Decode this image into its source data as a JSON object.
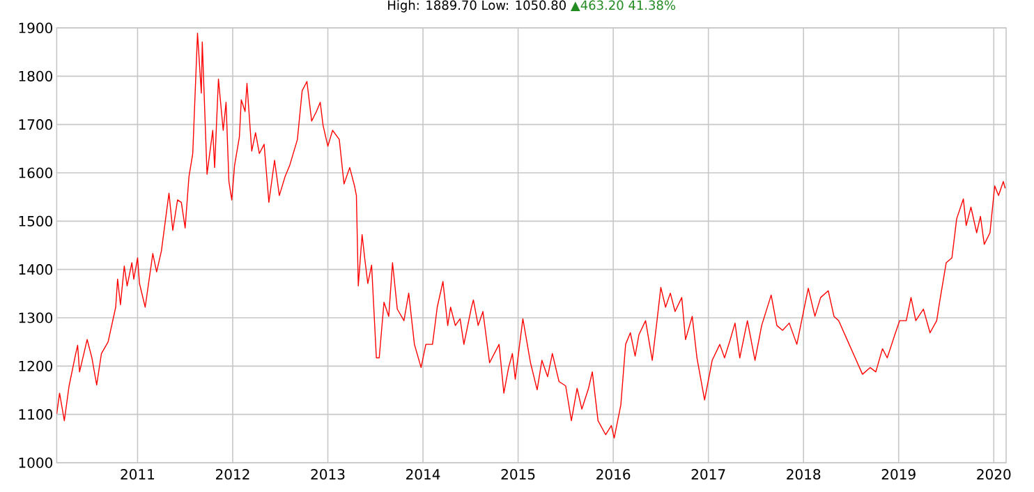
{
  "chart_data": {
    "type": "line",
    "title": "High: 1889.70 Low: 1050.80",
    "annotations": [
      "▲463.20 41.38%"
    ],
    "x": [
      2010.15,
      2010.18,
      2010.23,
      2010.28,
      2010.35,
      2010.37,
      2010.39,
      2010.47,
      2010.52,
      2010.57,
      2010.62,
      2010.69,
      2010.77,
      2010.79,
      2010.82,
      2010.86,
      2010.89,
      2010.94,
      2010.96,
      2011.0,
      2011.02,
      2011.08,
      2011.16,
      2011.2,
      2011.25,
      2011.33,
      2011.37,
      2011.42,
      2011.46,
      2011.5,
      2011.54,
      2011.58,
      2011.63,
      2011.67,
      2011.68,
      2011.73,
      2011.79,
      2011.81,
      2011.85,
      2011.9,
      2011.93,
      2011.96,
      2011.99,
      2012.02,
      2012.07,
      2012.09,
      2012.13,
      2012.15,
      2012.2,
      2012.24,
      2012.28,
      2012.33,
      2012.38,
      2012.44,
      2012.49,
      2012.55,
      2012.6,
      2012.68,
      2012.73,
      2012.78,
      2012.83,
      2012.88,
      2012.92,
      2012.95,
      2013.0,
      2013.05,
      2013.12,
      2013.17,
      2013.23,
      2013.28,
      2013.3,
      2013.32,
      2013.36,
      2013.39,
      2013.42,
      2013.46,
      2013.51,
      2013.54,
      2013.59,
      2013.64,
      2013.68,
      2013.73,
      2013.8,
      2013.85,
      2013.91,
      2013.98,
      2014.03,
      2014.1,
      2014.15,
      2014.21,
      2014.26,
      2014.29,
      2014.34,
      2014.39,
      2014.43,
      2014.51,
      2014.53,
      2014.58,
      2014.63,
      2014.7,
      2014.8,
      2014.85,
      2014.9,
      2014.94,
      2014.97,
      2015.05,
      2015.13,
      2015.2,
      2015.25,
      2015.31,
      2015.36,
      2015.43,
      2015.5,
      2015.56,
      2015.62,
      2015.67,
      2015.74,
      2015.78,
      2015.84,
      2015.92,
      2015.98,
      2016.01,
      2016.08,
      2016.13,
      2016.18,
      2016.23,
      2016.27,
      2016.34,
      2016.41,
      2016.46,
      2016.5,
      2016.55,
      2016.6,
      2016.65,
      2016.72,
      2016.76,
      2016.83,
      2016.88,
      2016.96,
      2017.04,
      2017.12,
      2017.17,
      2017.23,
      2017.28,
      2017.33,
      2017.41,
      2017.49,
      2017.56,
      2017.66,
      2017.72,
      2017.78,
      2017.85,
      2017.93,
      2018.0,
      2018.05,
      2018.12,
      2018.18,
      2018.26,
      2018.32,
      2018.37,
      2018.48,
      2018.62,
      2018.7,
      2018.76,
      2018.83,
      2018.88,
      2018.96,
      2019.01,
      2019.08,
      2019.13,
      2019.18,
      2019.26,
      2019.33,
      2019.4,
      2019.43,
      2019.5,
      2019.56,
      2019.61,
      2019.68,
      2019.71,
      2019.76,
      2019.82,
      2019.86,
      2019.9,
      2019.96,
      2020.01,
      2020.05,
      2020.1,
      2020.12
    ],
    "series": [
      {
        "color": "#ff0000",
        "values": [
          1101,
          1144,
          1087,
          1159,
          1226,
          1243,
          1188,
          1255,
          1217,
          1161,
          1226,
          1250,
          1322,
          1380,
          1327,
          1407,
          1366,
          1414,
          1380,
          1424,
          1371,
          1322,
          1433,
          1395,
          1438,
          1558,
          1481,
          1544,
          1539,
          1486,
          1592,
          1640,
          1889,
          1765,
          1871,
          1597,
          1688,
          1611,
          1794,
          1688,
          1746,
          1582,
          1544,
          1616,
          1674,
          1751,
          1727,
          1785,
          1645,
          1683,
          1640,
          1659,
          1539,
          1626,
          1553,
          1592,
          1616,
          1669,
          1770,
          1789,
          1707,
          1727,
          1746,
          1698,
          1655,
          1688,
          1669,
          1577,
          1611,
          1573,
          1553,
          1366,
          1472,
          1419,
          1371,
          1409,
          1217,
          1217,
          1332,
          1303,
          1414,
          1318,
          1294,
          1351,
          1245,
          1197,
          1245,
          1245,
          1322,
          1375,
          1284,
          1322,
          1284,
          1298,
          1245,
          1322,
          1337,
          1284,
          1313,
          1207,
          1245,
          1144,
          1197,
          1226,
          1173,
          1298,
          1207,
          1151,
          1212,
          1178,
          1226,
          1168,
          1159,
          1087,
          1154,
          1111,
          1154,
          1188,
          1087,
          1058,
          1077,
          1051,
          1120,
          1245,
          1269,
          1221,
          1265,
          1294,
          1212,
          1294,
          1363,
          1322,
          1351,
          1313,
          1342,
          1255,
          1303,
          1217,
          1130,
          1212,
          1245,
          1217,
          1255,
          1289,
          1217,
          1294,
          1212,
          1284,
          1347,
          1284,
          1274,
          1289,
          1245,
          1313,
          1361,
          1303,
          1342,
          1356,
          1303,
          1294,
          1245,
          1183,
          1197,
          1188,
          1236,
          1217,
          1265,
          1294,
          1294,
          1342,
          1294,
          1318,
          1269,
          1294,
          1332,
          1414,
          1424,
          1505,
          1546,
          1491,
          1529,
          1476,
          1510,
          1452,
          1476,
          1573,
          1553,
          1582,
          1568
        ]
      }
    ],
    "xlim": [
      2010.15,
      2020.13
    ],
    "ylim": [
      1000,
      1900
    ],
    "xticks": [
      2011,
      2012,
      2013,
      2014,
      2015,
      2016,
      2017,
      2018,
      2019,
      2020
    ],
    "yticks": [
      1000,
      1100,
      1200,
      1300,
      1400,
      1500,
      1600,
      1700,
      1800,
      1900
    ],
    "grid": true,
    "marker": "none",
    "line_style": "solid"
  }
}
